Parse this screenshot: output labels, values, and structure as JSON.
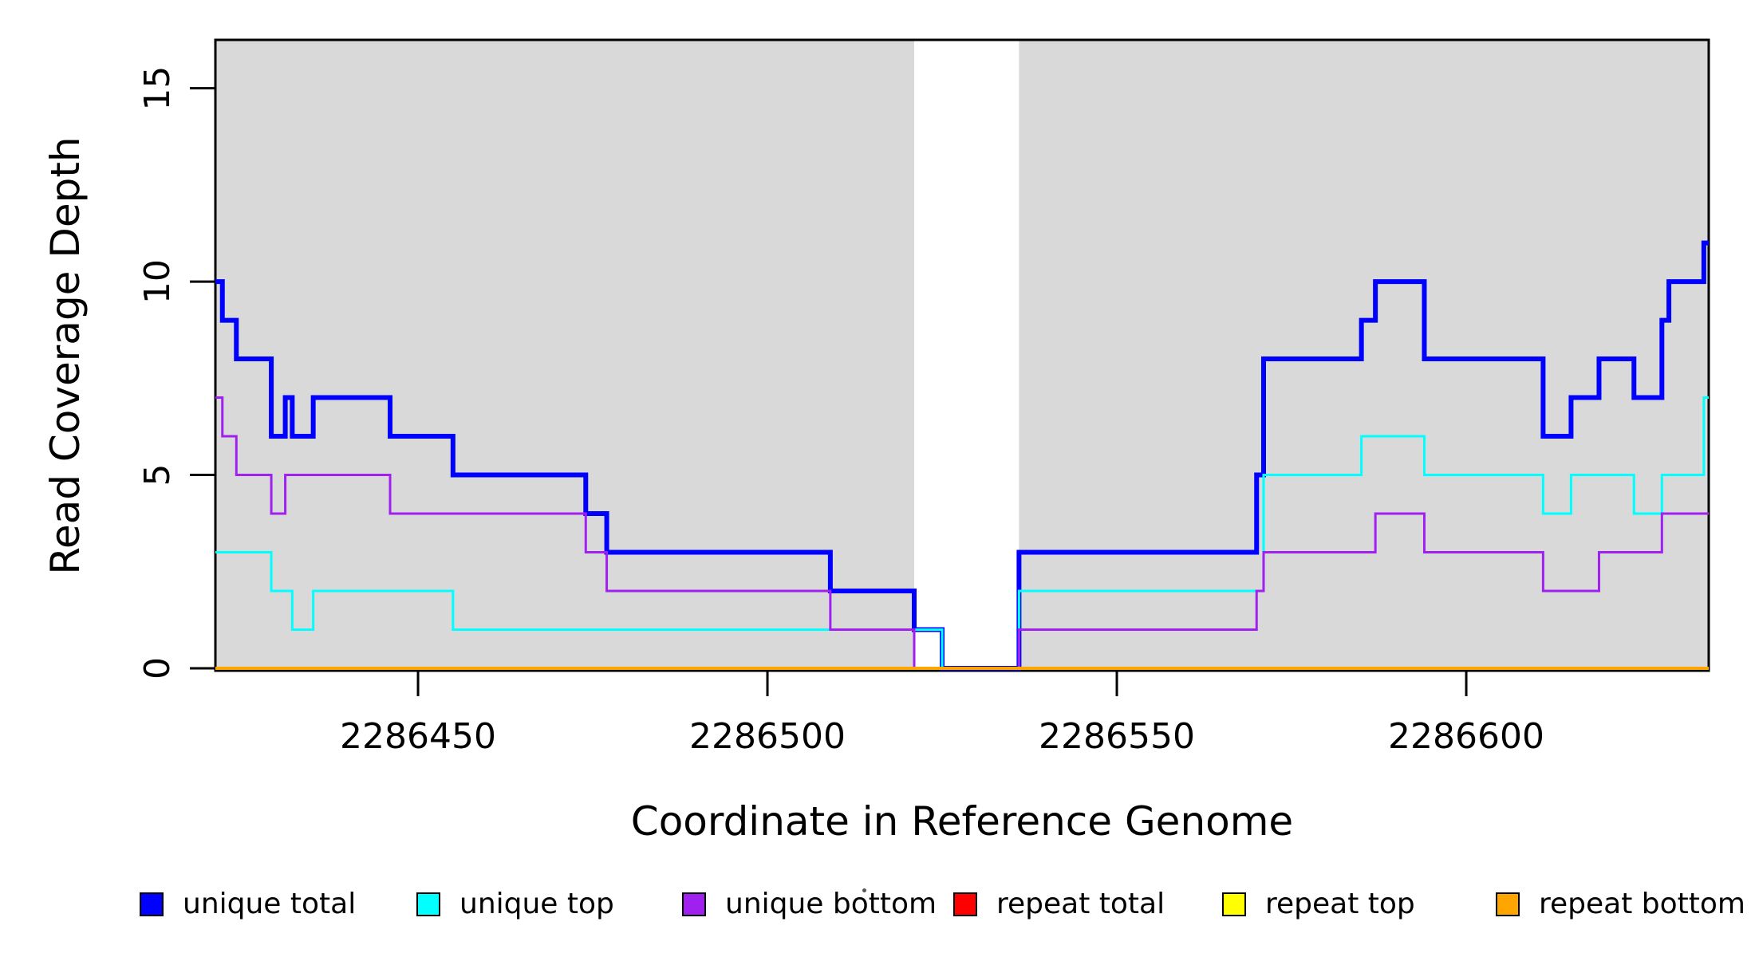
{
  "figure": {
    "kind": "read coverage step plot",
    "background": "#ffffff",
    "frame_color": "#000000",
    "text_color": "#000000"
  },
  "chart_data": {
    "type": "line",
    "subtype": "step",
    "title": "",
    "xlabel": "Coordinate in Reference Genome",
    "ylabel": "Read Coverage Depth",
    "xlim": [
      2286421,
      2286634.7
    ],
    "ylim": [
      0,
      16.25
    ],
    "x_ticks": [
      2286450,
      2286500,
      2286550,
      2286600
    ],
    "x_tick_labels": [
      "2286450",
      "2286500",
      "2286550",
      "2286600"
    ],
    "y_ticks": [
      0,
      5,
      10,
      15
    ],
    "y_tick_labels": [
      "0",
      "5",
      "10",
      "15"
    ],
    "grid": false,
    "legend_position": "bottom",
    "background_shading": {
      "color": "#d9d9d9",
      "regions": [
        [
          2286421,
          2286521
        ],
        [
          2286536,
          2286634.7
        ]
      ],
      "gap_region": [
        2286521,
        2286536
      ]
    },
    "series": [
      {
        "name": "unique total",
        "color": "#0000ff",
        "line_width": 6,
        "steps": [
          [
            2286421,
            10
          ],
          [
            2286422,
            9
          ],
          [
            2286424,
            8
          ],
          [
            2286429,
            6
          ],
          [
            2286431,
            7
          ],
          [
            2286432,
            6
          ],
          [
            2286435,
            7
          ],
          [
            2286446,
            6
          ],
          [
            2286455,
            5
          ],
          [
            2286474,
            4
          ],
          [
            2286477,
            3
          ],
          [
            2286509,
            2
          ],
          [
            2286521,
            1
          ],
          [
            2286525,
            0
          ],
          [
            2286536,
            3
          ],
          [
            2286570,
            5
          ],
          [
            2286571,
            8
          ],
          [
            2286585,
            9
          ],
          [
            2286587,
            10
          ],
          [
            2286594,
            8
          ],
          [
            2286611,
            6
          ],
          [
            2286615,
            7
          ],
          [
            2286619,
            8
          ],
          [
            2286624,
            7
          ],
          [
            2286628,
            9
          ],
          [
            2286629,
            10
          ],
          [
            2286634,
            11
          ]
        ]
      },
      {
        "name": "unique top",
        "color": "#00ffff",
        "line_width": 3,
        "steps": [
          [
            2286421,
            3
          ],
          [
            2286429,
            2
          ],
          [
            2286432,
            1
          ],
          [
            2286435,
            2
          ],
          [
            2286455,
            1
          ],
          [
            2286525,
            0
          ],
          [
            2286536,
            2
          ],
          [
            2286571,
            5
          ],
          [
            2286585,
            6
          ],
          [
            2286594,
            5
          ],
          [
            2286611,
            4
          ],
          [
            2286615,
            5
          ],
          [
            2286624,
            4
          ],
          [
            2286628,
            5
          ],
          [
            2286634,
            7
          ]
        ]
      },
      {
        "name": "unique bottom",
        "color": "#a020f0",
        "line_width": 3,
        "steps": [
          [
            2286421,
            7
          ],
          [
            2286422,
            6
          ],
          [
            2286424,
            5
          ],
          [
            2286429,
            4
          ],
          [
            2286431,
            5
          ],
          [
            2286446,
            4
          ],
          [
            2286474,
            3
          ],
          [
            2286477,
            2
          ],
          [
            2286509,
            1
          ],
          [
            2286521,
            0
          ],
          [
            2286536,
            1
          ],
          [
            2286570,
            2
          ],
          [
            2286571,
            3
          ],
          [
            2286587,
            4
          ],
          [
            2286594,
            3
          ],
          [
            2286611,
            2
          ],
          [
            2286619,
            3
          ],
          [
            2286628,
            4
          ]
        ]
      },
      {
        "name": "repeat total",
        "color": "#ff0000",
        "line_width": 3,
        "steps": [
          [
            2286421,
            0
          ]
        ]
      },
      {
        "name": "repeat top",
        "color": "#ffff00",
        "line_width": 3,
        "steps": [
          [
            2286421,
            0
          ]
        ]
      },
      {
        "name": "repeat bottom",
        "color": "#ffa500",
        "line_width": 4,
        "steps": [
          [
            2286421,
            0
          ]
        ]
      }
    ],
    "legend": {
      "items": [
        {
          "label": "unique total",
          "color": "#0000ff"
        },
        {
          "label": "unique top",
          "color": "#00ffff"
        },
        {
          "label": "unique bottom",
          "color": "#a020f0"
        },
        {
          "label": "repeat total",
          "color": "#ff0000"
        },
        {
          "label": "repeat top",
          "color": "#ffff00"
        },
        {
          "label": "repeat bottom",
          "color": "#ffa500"
        }
      ]
    }
  }
}
